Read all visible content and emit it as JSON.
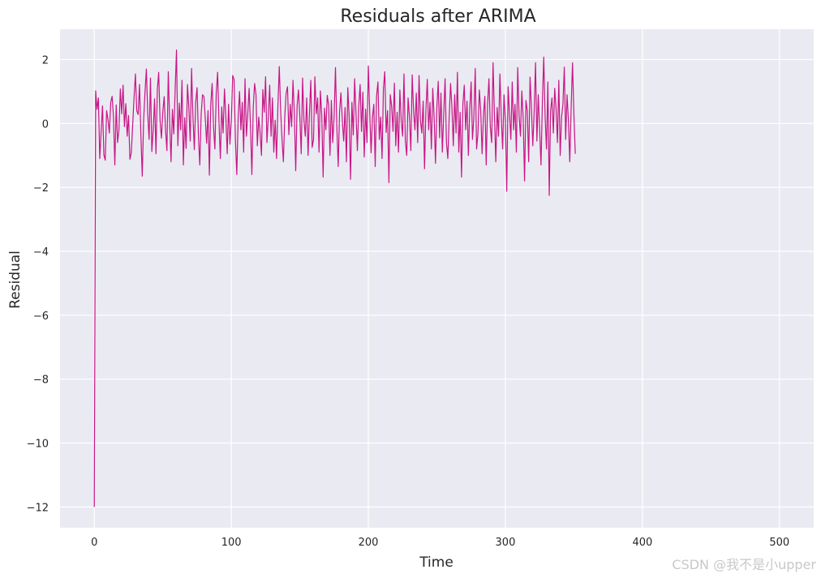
{
  "chart_data": {
    "type": "line",
    "title": "Residuals after ARIMA",
    "xlabel": "Time",
    "ylabel": "Residual",
    "xlim": [
      -25,
      525
    ],
    "ylim": [
      -12.65,
      2.95
    ],
    "xticks": [
      0,
      100,
      200,
      300,
      400,
      500
    ],
    "yticks": [
      -12,
      -10,
      -8,
      -6,
      -4,
      -2,
      0,
      2
    ],
    "grid": true,
    "line_color": "#C71585",
    "background_color": "#EAEAF2",
    "grid_color": "#FFFFFF",
    "series": [
      {
        "x_start": 0,
        "x_step": 1,
        "values": [
          -12.0,
          1.02,
          0.44,
          0.8,
          -1.1,
          -0.25,
          0.55,
          -0.98,
          -1.15,
          0.4,
          0.12,
          -0.3,
          0.66,
          0.85,
          0.2,
          -1.3,
          0.58,
          -0.6,
          -0.2,
          1.08,
          0.3,
          1.2,
          -0.1,
          0.62,
          -0.4,
          0.25,
          -1.12,
          -0.92,
          -0.06,
          0.8,
          1.55,
          0.4,
          0.28,
          1.22,
          -0.35,
          -1.65,
          0.1,
          0.96,
          1.7,
          0.3,
          -0.5,
          1.42,
          -0.88,
          -0.2,
          0.77,
          -0.95,
          1.05,
          1.6,
          0.1,
          -0.46,
          0.36,
          0.84,
          -0.2,
          -0.85,
          1.62,
          0.05,
          -1.2,
          0.44,
          -0.33,
          1.02,
          2.3,
          -0.7,
          0.64,
          -0.2,
          1.35,
          -1.3,
          0.18,
          -0.78,
          1.22,
          0.5,
          -0.55,
          1.72,
          0.2,
          -0.82,
          0.66,
          1.12,
          -0.4,
          -1.3,
          0.3,
          0.9,
          0.84,
          0.15,
          -0.62,
          0.4,
          -1.62,
          0.6,
          1.25,
          -0.1,
          -0.8,
          0.95,
          1.6,
          0.05,
          -1.1,
          0.52,
          -0.3,
          1.08,
          0.2,
          -0.95,
          0.6,
          -0.65,
          0.1,
          1.5,
          1.38,
          -0.52,
          -1.6,
          0.2,
          1.0,
          -0.2,
          0.66,
          -0.9,
          1.4,
          -0.4,
          0.3,
          1.1,
          -0.1,
          -1.6,
          0.5,
          1.25,
          0.9,
          -0.7,
          0.2,
          -0.3,
          -1.0,
          1.06,
          0.35,
          1.46,
          -0.6,
          0.2,
          1.2,
          -0.4,
          0.8,
          -0.9,
          0.1,
          -1.1,
          0.55,
          1.78,
          0.4,
          -0.5,
          -1.2,
          0.2,
          0.95,
          1.15,
          -0.35,
          0.6,
          -0.1,
          1.35,
          0.3,
          -1.48,
          0.55,
          1.05,
          0.2,
          -0.95,
          1.42,
          0.1,
          -0.4,
          0.8,
          -1.0,
          0.3,
          1.35,
          -0.75,
          -0.5,
          1.46,
          0.3,
          0.8,
          -0.9,
          1.02,
          0.25,
          -1.68,
          0.48,
          -0.2,
          0.88,
          0.58,
          -1.0,
          0.72,
          -0.6,
          0.2,
          1.75,
          -0.1,
          -1.35,
          0.38,
          0.96,
          0.1,
          -0.55,
          0.5,
          -1.2,
          1.12,
          0.22,
          -1.75,
          0.66,
          -0.36,
          1.4,
          0.3,
          -0.85,
          0.55,
          1.22,
          -0.25,
          0.98,
          -1.05,
          0.45,
          -0.6,
          1.8,
          0.35,
          -0.92,
          0.2,
          0.6,
          -1.35,
          0.85,
          1.3,
          -0.5,
          0.2,
          -1.1,
          1.1,
          1.62,
          -0.28,
          0.4,
          -1.85,
          0.9,
          0.55,
          -0.25,
          1.26,
          -0.7,
          0.35,
          -0.9,
          1.05,
          0.1,
          -0.4,
          1.55,
          -0.55,
          -1.0,
          0.8,
          0.2,
          -0.85,
          1.52,
          0.4,
          -0.2,
          0.95,
          -0.6,
          1.5,
          0.1,
          -0.3,
          0.7,
          -1.42,
          0.4,
          1.38,
          -0.2,
          0.66,
          -0.8,
          1.1,
          0.2,
          -1.25,
          0.5,
          1.32,
          -0.45,
          0.95,
          -0.9,
          0.3,
          1.4,
          -0.6,
          -1.1,
          0.2,
          1.25,
          0.5,
          -0.7,
          0.9,
          -0.3,
          1.6,
          -0.9,
          0.35,
          -1.68,
          0.6,
          1.2,
          -0.2,
          0.7,
          -1.0,
          0.45,
          1.3,
          -0.5,
          0.2,
          1.72,
          -0.8,
          -0.3,
          1.05,
          0.4,
          -0.95,
          0.25,
          0.85,
          -1.3,
          0.6,
          1.4,
          -0.1,
          -0.6,
          1.9,
          0.3,
          -1.2,
          0.5,
          -0.4,
          1.55,
          0.2,
          -0.8,
          0.9,
          0.1,
          -2.12,
          1.15,
          0.3,
          -0.5,
          1.3,
          -0.2,
          0.6,
          -0.9,
          1.75,
          0.25,
          -0.4,
          1.02,
          0.15,
          -1.8,
          0.72,
          0.4,
          -1.2,
          1.45,
          0.5,
          -0.7,
          0.35,
          1.9,
          -0.55,
          0.9,
          -0.2,
          -1.3,
          0.65,
          2.08,
          0.2,
          -0.8,
          1.3,
          -2.25,
          0.4,
          0.8,
          -0.3,
          1.1,
          0.45,
          -0.6,
          1.35,
          -1.0,
          0.2,
          0.6,
          1.76,
          -0.5,
          0.9,
          0.1,
          -1.2,
          0.5,
          1.9,
          0.3,
          -0.95
        ]
      }
    ],
    "watermark": "CSDN @我不是小upper"
  }
}
